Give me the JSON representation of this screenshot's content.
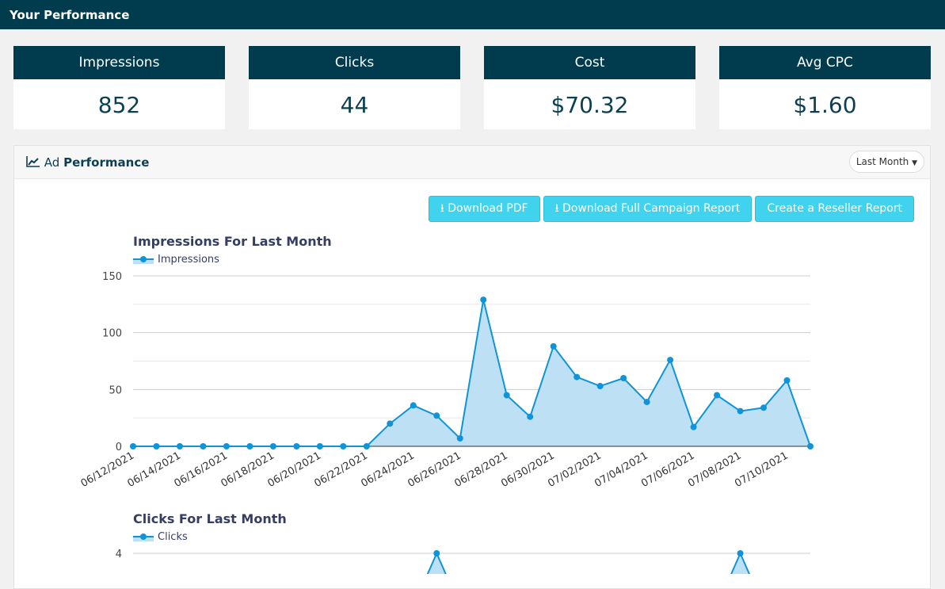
{
  "header": {
    "title": "Your Performance"
  },
  "stats": [
    {
      "label": "Impressions",
      "value": "852"
    },
    {
      "label": "Clicks",
      "value": "44"
    },
    {
      "label": "Cost",
      "value": "$70.32"
    },
    {
      "label": "Avg CPC",
      "value": "$1.60"
    }
  ],
  "panel": {
    "title_prefix": "Ad",
    "title_bold": "Performance",
    "icon": "line-chart-icon",
    "range": "Last Month",
    "buttons": {
      "pdf": "Download PDF",
      "full": "Download Full Campaign Report",
      "reseller": "Create a Reseller Report"
    }
  },
  "colors": {
    "header": "#003c4d",
    "button": "#41d3ee",
    "series": "#0f94d8",
    "fill": "#bde0f5"
  },
  "chart_data": [
    {
      "type": "area",
      "title": "Impressions For Last Month",
      "legend": "Impressions",
      "legend_position": "top-left",
      "ylim": [
        0,
        150
      ],
      "yticks": [
        0,
        50,
        100,
        150
      ],
      "grid": true,
      "x": [
        "06/12/2021",
        "06/13/2021",
        "06/14/2021",
        "06/15/2021",
        "06/16/2021",
        "06/17/2021",
        "06/18/2021",
        "06/19/2021",
        "06/20/2021",
        "06/21/2021",
        "06/22/2021",
        "06/23/2021",
        "06/24/2021",
        "06/25/2021",
        "06/26/2021",
        "06/27/2021",
        "06/28/2021",
        "06/29/2021",
        "06/30/2021",
        "07/01/2021",
        "07/02/2021",
        "07/03/2021",
        "07/04/2021",
        "07/05/2021",
        "07/06/2021",
        "07/07/2021",
        "07/08/2021",
        "07/09/2021",
        "07/10/2021",
        "07/11/2021"
      ],
      "xtick_labels": [
        "06/12/2021",
        "06/14/2021",
        "06/16/2021",
        "06/18/2021",
        "06/20/2021",
        "06/22/2021",
        "06/24/2021",
        "06/26/2021",
        "06/28/2021",
        "06/30/2021",
        "07/02/2021",
        "07/04/2021",
        "07/06/2021",
        "07/08/2021",
        "07/10/2021"
      ],
      "values": [
        0,
        0,
        0,
        0,
        0,
        0,
        0,
        0,
        0,
        0,
        0,
        20,
        36,
        27,
        7,
        129,
        45,
        26,
        88,
        61,
        53,
        60,
        39,
        76,
        17,
        45,
        31,
        34,
        58,
        0
      ]
    },
    {
      "type": "area",
      "title": "Clicks For Last Month",
      "legend": "Clicks",
      "legend_position": "top-left",
      "yticks": [
        4
      ],
      "grid": true,
      "visible_points": [
        {
          "x": "06/25/2021",
          "y": 4
        },
        {
          "x": "07/08/2021",
          "y": 4
        }
      ]
    }
  ]
}
